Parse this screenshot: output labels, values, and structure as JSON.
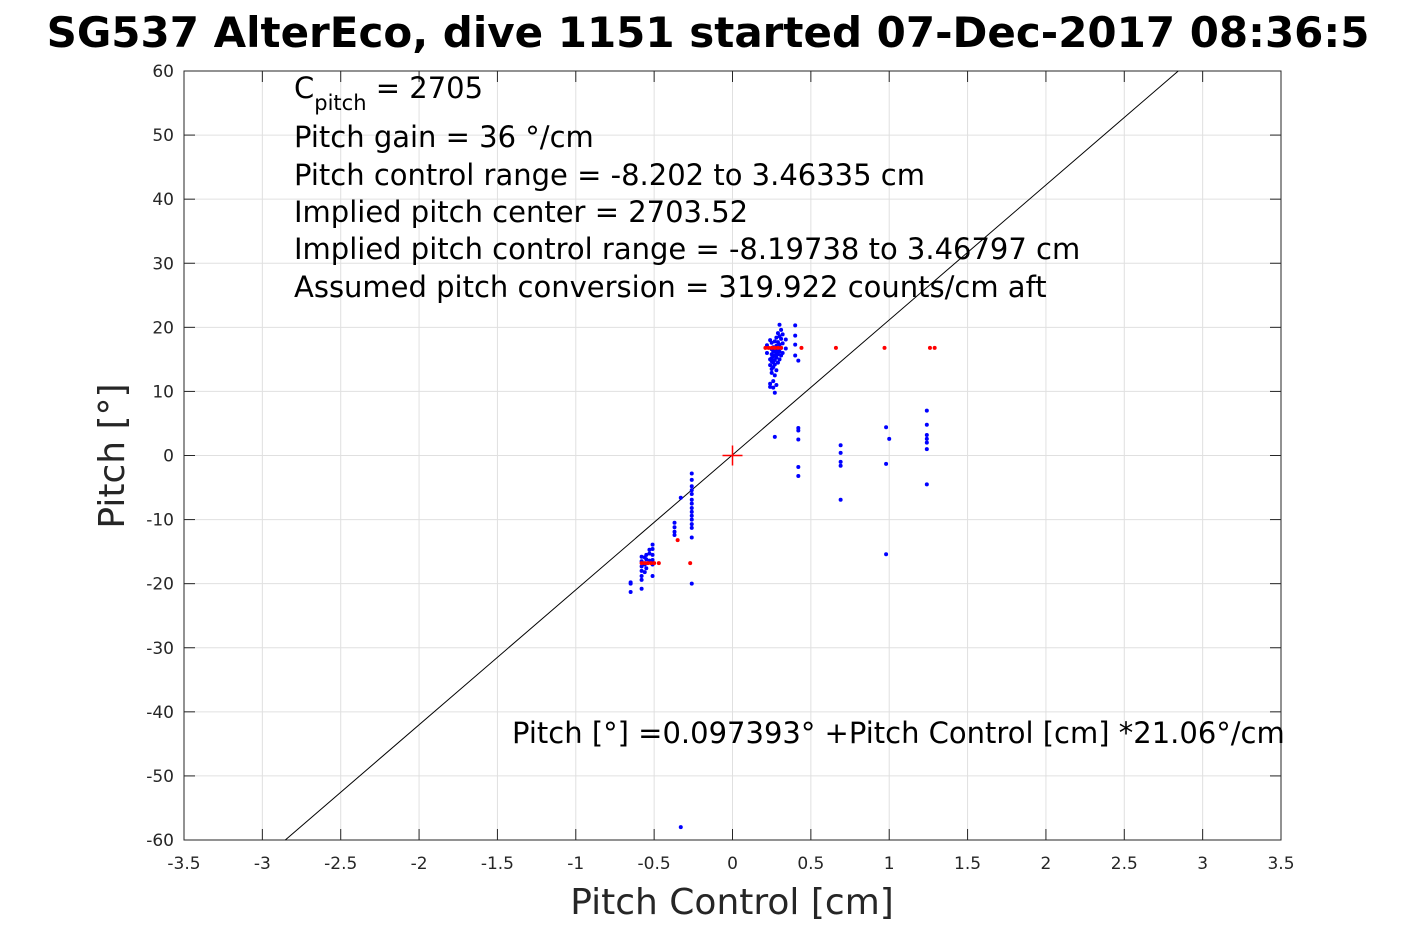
{
  "chart_data": {
    "type": "scatter",
    "title": "SG537 AlterEco, dive 1151 started 07-Dec-2017 08:36:5",
    "xlabel": "Pitch Control [cm]",
    "ylabel": "Pitch [°]",
    "xlim": [
      -3.5,
      3.5
    ],
    "ylim": [
      -60,
      60
    ],
    "xticks": [
      -3.5,
      -3,
      -2.5,
      -2,
      -1.5,
      -1,
      -0.5,
      0,
      0.5,
      1,
      1.5,
      2,
      2.5,
      3,
      3.5
    ],
    "xtick_labels": [
      "-3.5",
      "-3",
      "-2.5",
      "-2",
      "-1.5",
      "-1",
      "-0.5",
      "0",
      "0.5",
      "1",
      "1.5",
      "2",
      "2.5",
      "3",
      "3.5"
    ],
    "yticks": [
      60,
      50,
      40,
      30,
      20,
      10,
      0,
      -10,
      -20,
      -30,
      -40,
      -50,
      -60
    ],
    "ytick_labels": [
      "60",
      "50",
      "40",
      "30",
      "20",
      "10",
      "0",
      "-10",
      "-20",
      "-30",
      "-40",
      "-50",
      "-60"
    ],
    "grid": true,
    "annotations": {
      "c_pitch_main": "C",
      "c_pitch_sub": "pitch",
      "c_pitch_value": " = 2705",
      "pitch_gain": "Pitch gain = 36 °/cm",
      "control_range": "Pitch control range = -8.202 to 3.46335 cm",
      "implied_center": "Implied pitch center = 2703.52",
      "implied_range": "Implied pitch control range = -8.19738 to 3.46797 cm",
      "conversion": "Assumed pitch conversion = 319.922 counts/cm aft",
      "fit_equation": "Pitch [°] =0.097393° +Pitch Control [cm] *21.06°/cm"
    },
    "fit_line": {
      "intercept": 0.097393,
      "slope": 21.06,
      "color": "#000000"
    },
    "center_marker": {
      "x": 0,
      "y": 0,
      "color": "#ff0000"
    },
    "series": [
      {
        "color": "#0000ff",
        "points": [
          [
            -0.65,
            -20.0
          ],
          [
            -0.65,
            -21.3
          ],
          [
            -0.65,
            -19.8
          ],
          [
            -0.58,
            -15.8
          ],
          [
            -0.58,
            -16.5
          ],
          [
            -0.58,
            -17.3
          ],
          [
            -0.58,
            -18.0
          ],
          [
            -0.58,
            -18.8
          ],
          [
            -0.58,
            -19.4
          ],
          [
            -0.58,
            -20.8
          ],
          [
            -0.56,
            -15.9
          ],
          [
            -0.56,
            -17.0
          ],
          [
            -0.56,
            -18.2
          ],
          [
            -0.55,
            -15.5
          ],
          [
            -0.55,
            -16.2
          ],
          [
            -0.55,
            -17.6
          ],
          [
            -0.53,
            -14.7
          ],
          [
            -0.53,
            -15.3
          ],
          [
            -0.53,
            -16.4
          ],
          [
            -0.51,
            -13.9
          ],
          [
            -0.51,
            -14.6
          ],
          [
            -0.51,
            -15.5
          ],
          [
            -0.51,
            -16.3
          ],
          [
            -0.51,
            -17.0
          ],
          [
            -0.51,
            -18.8
          ],
          [
            -0.37,
            -10.5
          ],
          [
            -0.37,
            -11.2
          ],
          [
            -0.37,
            -11.9
          ],
          [
            -0.37,
            -12.4
          ],
          [
            -0.33,
            -6.6
          ],
          [
            -0.33,
            -58.0
          ],
          [
            -0.26,
            -2.8
          ],
          [
            -0.26,
            -3.8
          ],
          [
            -0.26,
            -4.8
          ],
          [
            -0.26,
            -5.4
          ],
          [
            -0.26,
            -6.0
          ],
          [
            -0.26,
            -6.9
          ],
          [
            -0.26,
            -7.5
          ],
          [
            -0.26,
            -8.2
          ],
          [
            -0.26,
            -8.8
          ],
          [
            -0.26,
            -9.4
          ],
          [
            -0.26,
            -10.0
          ],
          [
            -0.26,
            -10.7
          ],
          [
            -0.26,
            -11.3
          ],
          [
            -0.26,
            -12.8
          ],
          [
            -0.26,
            -20.0
          ],
          [
            0.22,
            17.2
          ],
          [
            0.22,
            16.0
          ],
          [
            0.24,
            18.0
          ],
          [
            0.24,
            15.0
          ],
          [
            0.24,
            14.1
          ],
          [
            0.24,
            11.2
          ],
          [
            0.24,
            10.7
          ],
          [
            0.25,
            17.6
          ],
          [
            0.25,
            16.6
          ],
          [
            0.25,
            15.8
          ],
          [
            0.25,
            15.2
          ],
          [
            0.25,
            14.7
          ],
          [
            0.25,
            13.5
          ],
          [
            0.25,
            12.9
          ],
          [
            0.26,
            16.9
          ],
          [
            0.26,
            16.2
          ],
          [
            0.26,
            15.5
          ],
          [
            0.26,
            14.5
          ],
          [
            0.26,
            13.8
          ],
          [
            0.26,
            11.6
          ],
          [
            0.26,
            10.6
          ],
          [
            0.27,
            17.8
          ],
          [
            0.27,
            16.4
          ],
          [
            0.27,
            15.6
          ],
          [
            0.27,
            14.9
          ],
          [
            0.27,
            14.2
          ],
          [
            0.27,
            12.5
          ],
          [
            0.27,
            9.8
          ],
          [
            0.27,
            2.9
          ],
          [
            0.28,
            18.4
          ],
          [
            0.28,
            17.1
          ],
          [
            0.28,
            16.1
          ],
          [
            0.28,
            15.3
          ],
          [
            0.28,
            13.3
          ],
          [
            0.28,
            11.0
          ],
          [
            0.29,
            19.1
          ],
          [
            0.29,
            17.7
          ],
          [
            0.29,
            16.5
          ],
          [
            0.29,
            15.8
          ],
          [
            0.29,
            14.5
          ],
          [
            0.3,
            20.4
          ],
          [
            0.3,
            18.6
          ],
          [
            0.3,
            17.3
          ],
          [
            0.3,
            16.2
          ],
          [
            0.3,
            15.0
          ],
          [
            0.31,
            19.6
          ],
          [
            0.31,
            18.2
          ],
          [
            0.31,
            16.8
          ],
          [
            0.31,
            15.6
          ],
          [
            0.32,
            18.9
          ],
          [
            0.32,
            17.5
          ],
          [
            0.32,
            16.0
          ],
          [
            0.34,
            18.1
          ],
          [
            0.34,
            16.7
          ],
          [
            0.4,
            20.3
          ],
          [
            0.4,
            18.7
          ],
          [
            0.4,
            17.3
          ],
          [
            0.4,
            15.6
          ],
          [
            0.42,
            14.8
          ],
          [
            0.42,
            4.3
          ],
          [
            0.42,
            3.9
          ],
          [
            0.42,
            2.5
          ],
          [
            0.42,
            -1.8
          ],
          [
            0.42,
            -3.2
          ],
          [
            0.69,
            1.6
          ],
          [
            0.69,
            0.4
          ],
          [
            0.69,
            -1.0
          ],
          [
            0.69,
            -1.6
          ],
          [
            0.69,
            -6.9
          ],
          [
            0.98,
            4.4
          ],
          [
            0.98,
            -1.3
          ],
          [
            0.98,
            -15.4
          ],
          [
            1.0,
            2.6
          ],
          [
            1.24,
            7.0
          ],
          [
            1.24,
            4.8
          ],
          [
            1.24,
            3.2
          ],
          [
            1.24,
            2.6
          ],
          [
            1.24,
            2.0
          ],
          [
            1.24,
            1.0
          ],
          [
            1.24,
            -4.5
          ]
        ]
      },
      {
        "color": "#ff0000",
        "points": [
          [
            -0.58,
            -16.8
          ],
          [
            -0.56,
            -16.8
          ],
          [
            -0.54,
            -16.8
          ],
          [
            -0.52,
            -16.8
          ],
          [
            -0.5,
            -16.8
          ],
          [
            -0.47,
            -16.8
          ],
          [
            -0.35,
            -13.2
          ],
          [
            -0.27,
            -16.8
          ],
          [
            0.21,
            16.8
          ],
          [
            0.23,
            16.8
          ],
          [
            0.25,
            16.8
          ],
          [
            0.27,
            16.8
          ],
          [
            0.29,
            16.8
          ],
          [
            0.31,
            16.8
          ],
          [
            0.44,
            16.8
          ],
          [
            0.66,
            16.8
          ],
          [
            0.97,
            16.8
          ],
          [
            1.26,
            16.8
          ],
          [
            1.29,
            16.8
          ]
        ]
      }
    ]
  }
}
